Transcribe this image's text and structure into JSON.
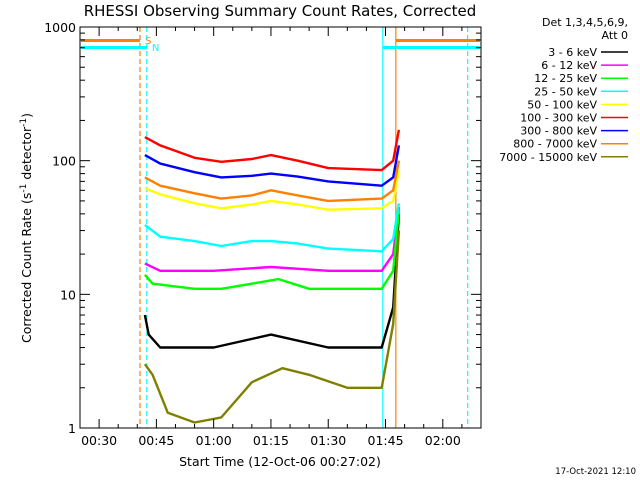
{
  "chart_data": {
    "type": "line",
    "title": "RHESSI Observing Summary Count Rates, Corrected",
    "xlabel": "Start Time (12-Oct-06 00:27:02)",
    "ylabel": "Corrected Count Rate (s⁻¹ detector⁻¹)",
    "ylabel_parts": {
      "pre": "Corrected Count Rate (s",
      "sup1": "-1",
      "mid": " detector",
      "sup2": "-1",
      "post": ")"
    },
    "yscale": "log",
    "ylim": [
      1,
      1000
    ],
    "xlim_minutes": [
      25,
      130
    ],
    "x_ticks": [
      {
        "label": "00:30",
        "minute": 30
      },
      {
        "label": "00:45",
        "minute": 45
      },
      {
        "label": "01:00",
        "minute": 60
      },
      {
        "label": "01:15",
        "minute": 75
      },
      {
        "label": "01:30",
        "minute": 90
      },
      {
        "label": "01:45",
        "minute": 105
      },
      {
        "label": "02:00",
        "minute": 120
      }
    ],
    "y_ticks": [
      {
        "label": "1",
        "value": 1
      },
      {
        "label": "10",
        "value": 10
      },
      {
        "label": "100",
        "value": 100
      },
      {
        "label": "1000",
        "value": 1000
      }
    ],
    "legend_header": [
      "Det 1,3,4,5,6,9,",
      "Att 0"
    ],
    "series": [
      {
        "name": "3 - 6 keV",
        "color": "#000000",
        "x": [
          42,
          43,
          46,
          60,
          75,
          90,
          104,
          107,
          108.5
        ],
        "values": [
          7,
          5,
          4,
          4,
          5,
          4,
          4,
          8,
          40
        ]
      },
      {
        "name": "6 - 12 keV",
        "color": "#ff00ff",
        "x": [
          42,
          46,
          60,
          75,
          90,
          104,
          107,
          108.5
        ],
        "values": [
          17,
          15,
          15,
          16,
          15,
          15,
          20,
          45
        ]
      },
      {
        "name": "12 - 25 keV",
        "color": "#00ff00",
        "x": [
          42,
          44,
          55,
          62,
          70,
          77,
          85,
          95,
          104,
          107,
          108.5
        ],
        "values": [
          14,
          12,
          11,
          11,
          12,
          13,
          11,
          11,
          11,
          15,
          42
        ]
      },
      {
        "name": "25 - 50 keV",
        "color": "#00ffff",
        "x": [
          42,
          46,
          55,
          62,
          70,
          75,
          82,
          90,
          104,
          107,
          108.5
        ],
        "values": [
          33,
          27,
          25,
          23,
          25,
          25,
          24,
          22,
          21,
          26,
          48
        ]
      },
      {
        "name": "50 - 100 keV",
        "color": "#ffff00",
        "x": [
          42,
          46,
          55,
          62,
          70,
          75,
          82,
          90,
          104,
          107,
          108.5
        ],
        "values": [
          62,
          56,
          48,
          44,
          47,
          50,
          47,
          43,
          44,
          50,
          85
        ]
      },
      {
        "name": "100 - 300 keV",
        "color": "#ff0000",
        "x": [
          42,
          46,
          55,
          62,
          70,
          75,
          82,
          90,
          104,
          107,
          108.5
        ],
        "values": [
          150,
          130,
          105,
          98,
          103,
          110,
          100,
          88,
          85,
          100,
          170
        ]
      },
      {
        "name": "300 - 800 keV",
        "color": "#0000ff",
        "x": [
          42,
          46,
          55,
          62,
          70,
          75,
          82,
          90,
          104,
          107,
          108.5
        ],
        "values": [
          110,
          95,
          82,
          75,
          77,
          80,
          76,
          70,
          65,
          75,
          130
        ]
      },
      {
        "name": "800 - 7000 keV",
        "color": "#ff8000",
        "x": [
          42,
          46,
          55,
          62,
          70,
          75,
          82,
          90,
          104,
          107,
          108.5
        ],
        "values": [
          75,
          65,
          57,
          52,
          55,
          60,
          55,
          50,
          52,
          60,
          100
        ]
      },
      {
        "name": "7000 - 15000 keV",
        "color": "#808000",
        "x": [
          42,
          44,
          48,
          55,
          62,
          70,
          78,
          85,
          95,
          104,
          107,
          108.5
        ],
        "values": [
          3,
          2.5,
          1.3,
          1.1,
          1.2,
          2.2,
          2.8,
          2.5,
          2,
          2,
          6,
          30
        ]
      }
    ],
    "markers": [
      {
        "label": "S",
        "color": "#ff8000",
        "minute": 40.7,
        "style": "dashed"
      },
      {
        "label": "N",
        "color": "#00ffff",
        "minute": 42.5,
        "style": "dashed"
      },
      {
        "color": "#00ffff",
        "minute": 104.3,
        "style": "solid"
      },
      {
        "color": "#ff8000",
        "minute": 107.7,
        "style": "solid"
      },
      {
        "color": "#00ffff",
        "minute": 126.5,
        "style": "dashed"
      }
    ],
    "footer": "17-Oct-2021 12:10"
  }
}
